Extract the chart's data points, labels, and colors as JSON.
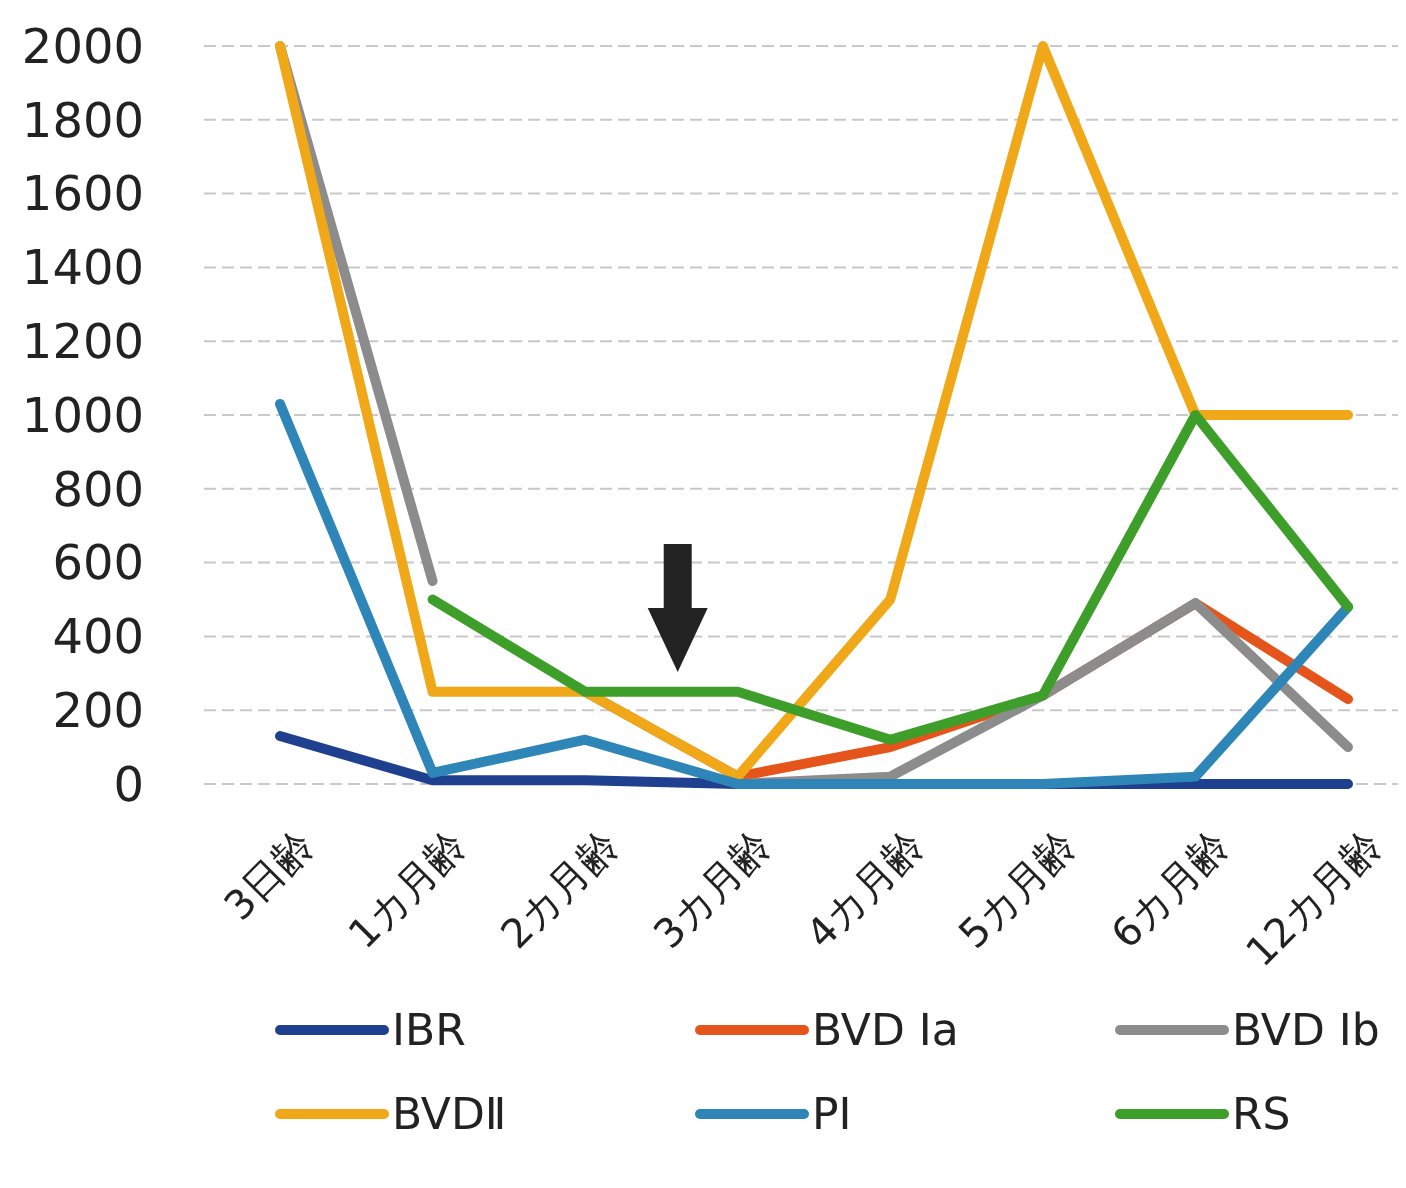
{
  "chart_data": {
    "type": "line",
    "categories": [
      "3日齢",
      "1カ月齢",
      "2カ月齢",
      "3カ月齢",
      "4カ月齢",
      "5カ月齢",
      "6カ月齢",
      "12カ月齢"
    ],
    "series": [
      {
        "name": "IBR",
        "color": "#1f3f8f",
        "values": [
          130,
          10,
          10,
          0,
          0,
          0,
          0,
          0
        ]
      },
      {
        "name": "BVD Ⅰa",
        "color": "#e5541b",
        "values": [
          null,
          null,
          250,
          20,
          100,
          240,
          490,
          230
        ]
      },
      {
        "name": "BVD Ⅰb",
        "color": "#8c8c8c",
        "values": [
          2000,
          550,
          null,
          0,
          20,
          240,
          490,
          100
        ]
      },
      {
        "name": "BVDⅡ",
        "color": "#f0a818",
        "values": [
          2000,
          250,
          250,
          20,
          500,
          2000,
          1000,
          1000
        ]
      },
      {
        "name": "PI",
        "color": "#2e86b8",
        "values": [
          1030,
          30,
          120,
          0,
          0,
          0,
          20,
          480
        ]
      },
      {
        "name": "RS",
        "color": "#3d9e2a",
        "values": [
          null,
          500,
          250,
          250,
          120,
          240,
          1000,
          480
        ]
      }
    ],
    "ylim": [
      0,
      2000
    ],
    "yticks": [
      0,
      200,
      400,
      600,
      800,
      1000,
      1200,
      1400,
      1600,
      1800,
      2000
    ],
    "grid": "y",
    "legend": "bottom",
    "marker": "none",
    "line_style": "solid"
  }
}
